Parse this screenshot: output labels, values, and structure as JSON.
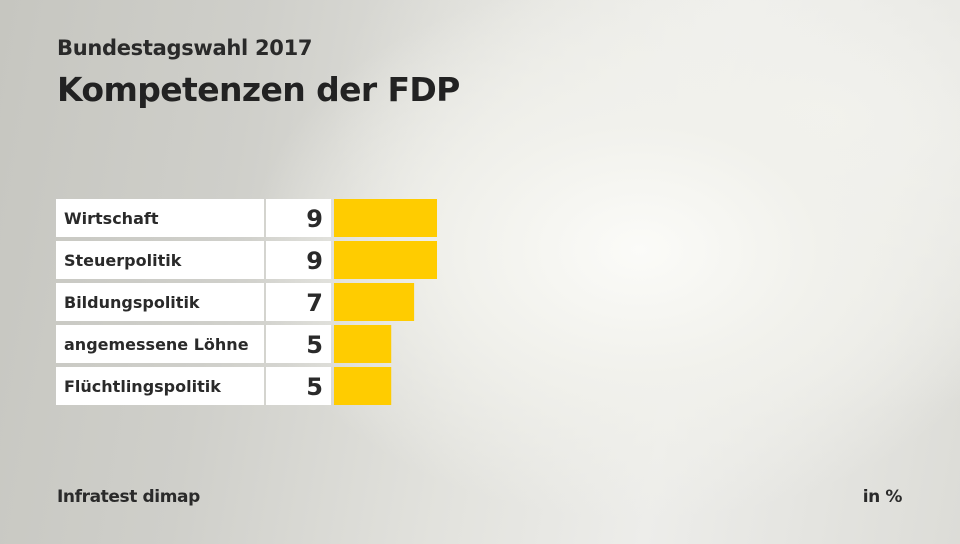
{
  "header": {
    "subtitle": "Bundestagswahl 2017",
    "title": "Kompetenzen der FDP"
  },
  "footer": {
    "source": "Infratest dimap",
    "unit": "in %"
  },
  "colors": {
    "bar": "#ffcc00",
    "row_background": "#ffffff",
    "text": "#2a2a2a"
  },
  "chart_data": {
    "type": "bar",
    "orientation": "horizontal",
    "title": "Kompetenzen der FDP",
    "subtitle": "Bundestagswahl 2017",
    "categories": [
      "Wirtschaft",
      "Steuerpolitik",
      "Bildungspolitik",
      "angemessene Löhne",
      "Flüchtlingspolitik"
    ],
    "values": [
      9,
      9,
      7,
      5,
      5
    ],
    "value_labels": [
      "9",
      "9",
      "7",
      "5",
      "5"
    ],
    "xlabel": "",
    "ylabel": "",
    "unit": "in %",
    "source": "Infratest dimap",
    "xlim": [
      0,
      9
    ],
    "grid": false,
    "legend": "none"
  }
}
